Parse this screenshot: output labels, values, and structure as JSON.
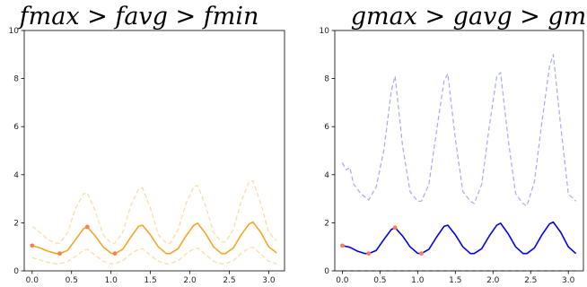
{
  "chart_data": [
    {
      "type": "line",
      "title": "f_max > f_avg > f_min",
      "title_display": "fmax > favg > fmin",
      "xlabel": "",
      "ylabel": "",
      "xlim": [
        -0.1,
        3.2
      ],
      "ylim": [
        0,
        10
      ],
      "xticks": [
        "0.0",
        "0.5",
        "1.0",
        "1.5",
        "2.0",
        "2.5",
        "3.0"
      ],
      "yticks": [
        "0",
        "2",
        "4",
        "6",
        "8",
        "10"
      ],
      "grid": false,
      "colors": {
        "avg": "#f5a623",
        "band": "#fbd9a0",
        "marker": "#ff7f50"
      },
      "series": [
        {
          "name": "f_avg",
          "style": "solid",
          "x": [
            0.0,
            0.1,
            0.2,
            0.3,
            0.35,
            0.45,
            0.55,
            0.65,
            0.7,
            0.8,
            0.9,
            1.0,
            1.05,
            1.15,
            1.25,
            1.35,
            1.4,
            1.5,
            1.6,
            1.7,
            1.75,
            1.85,
            1.95,
            2.05,
            2.1,
            2.2,
            2.3,
            2.4,
            2.45,
            2.55,
            2.65,
            2.75,
            2.8,
            2.9,
            3.0,
            3.1
          ],
          "y": [
            1.05,
            0.95,
            0.82,
            0.72,
            0.72,
            0.85,
            1.3,
            1.75,
            1.83,
            1.45,
            1.0,
            0.73,
            0.72,
            0.9,
            1.4,
            1.85,
            1.9,
            1.5,
            1.0,
            0.72,
            0.72,
            0.92,
            1.45,
            1.9,
            1.98,
            1.55,
            1.0,
            0.72,
            0.72,
            0.95,
            1.5,
            1.95,
            2.03,
            1.6,
            1.0,
            0.75
          ]
        },
        {
          "name": "f_max",
          "style": "dashed",
          "x": [
            0.0,
            0.1,
            0.2,
            0.3,
            0.35,
            0.45,
            0.55,
            0.65,
            0.7,
            0.8,
            0.9,
            1.0,
            1.05,
            1.15,
            1.25,
            1.35,
            1.4,
            1.5,
            1.6,
            1.7,
            1.75,
            1.85,
            1.95,
            2.05,
            2.1,
            2.2,
            2.3,
            2.4,
            2.45,
            2.55,
            2.65,
            2.75,
            2.8,
            2.9,
            3.0,
            3.1
          ],
          "y": [
            1.85,
            1.6,
            1.3,
            1.15,
            1.15,
            1.6,
            2.6,
            3.2,
            3.25,
            2.5,
            1.5,
            1.15,
            1.15,
            1.6,
            2.7,
            3.4,
            3.45,
            2.6,
            1.5,
            1.15,
            1.15,
            1.7,
            2.8,
            3.5,
            3.55,
            2.7,
            1.6,
            1.2,
            1.2,
            1.7,
            2.9,
            3.7,
            3.75,
            2.8,
            1.6,
            1.25
          ]
        },
        {
          "name": "f_min",
          "style": "dashed",
          "x": [
            0.0,
            0.1,
            0.2,
            0.3,
            0.35,
            0.45,
            0.55,
            0.65,
            0.7,
            0.8,
            0.9,
            1.0,
            1.05,
            1.15,
            1.25,
            1.35,
            1.4,
            1.5,
            1.6,
            1.7,
            1.75,
            1.85,
            1.95,
            2.05,
            2.1,
            2.2,
            2.3,
            2.4,
            2.45,
            2.55,
            2.65,
            2.75,
            2.8,
            2.9,
            3.0,
            3.1
          ],
          "y": [
            0.55,
            0.45,
            0.35,
            0.3,
            0.3,
            0.38,
            0.6,
            0.85,
            0.9,
            0.65,
            0.4,
            0.3,
            0.3,
            0.42,
            0.7,
            0.9,
            0.92,
            0.65,
            0.4,
            0.3,
            0.3,
            0.42,
            0.7,
            0.92,
            0.95,
            0.68,
            0.4,
            0.3,
            0.3,
            0.42,
            0.72,
            0.95,
            0.98,
            0.7,
            0.4,
            0.3
          ]
        }
      ],
      "markers": {
        "x": [
          0.0,
          0.35,
          0.7,
          1.05
        ],
        "y": [
          1.05,
          0.72,
          1.83,
          0.72
        ]
      }
    },
    {
      "type": "line",
      "title": "g_max > g_avg > g_min",
      "title_display": "gmax > gavg > gmin",
      "xlabel": "",
      "ylabel": "",
      "xlim": [
        -0.1,
        3.2
      ],
      "ylim": [
        0,
        10
      ],
      "xticks": [
        "0.0",
        "0.5",
        "1.0",
        "1.5",
        "2.0",
        "2.5",
        "3.0"
      ],
      "yticks": [
        "0",
        "2",
        "4",
        "6",
        "8",
        "10"
      ],
      "grid": false,
      "colors": {
        "avg": "#0000ee",
        "band": "#a8a8f5",
        "marker": "#ff7f50"
      },
      "series": [
        {
          "name": "g_avg",
          "style": "solid",
          "x": [
            0.0,
            0.1,
            0.2,
            0.3,
            0.35,
            0.45,
            0.55,
            0.65,
            0.7,
            0.8,
            0.9,
            1.0,
            1.05,
            1.15,
            1.25,
            1.35,
            1.4,
            1.5,
            1.6,
            1.7,
            1.75,
            1.85,
            1.95,
            2.05,
            2.1,
            2.2,
            2.3,
            2.4,
            2.45,
            2.55,
            2.65,
            2.75,
            2.8,
            2.9,
            3.0,
            3.1
          ],
          "y": [
            1.05,
            0.98,
            0.82,
            0.72,
            0.72,
            0.85,
            1.3,
            1.72,
            1.8,
            1.45,
            1.0,
            0.73,
            0.72,
            0.9,
            1.4,
            1.85,
            1.9,
            1.5,
            1.0,
            0.72,
            0.72,
            0.92,
            1.45,
            1.9,
            1.98,
            1.55,
            1.0,
            0.72,
            0.72,
            0.95,
            1.5,
            1.95,
            2.03,
            1.6,
            1.0,
            0.72
          ]
        },
        {
          "name": "g_max",
          "style": "dashed",
          "x": [
            0.0,
            0.05,
            0.1,
            0.15,
            0.25,
            0.35,
            0.45,
            0.55,
            0.65,
            0.7,
            0.8,
            0.9,
            1.0,
            1.05,
            1.15,
            1.25,
            1.35,
            1.4,
            1.5,
            1.6,
            1.7,
            1.75,
            1.85,
            1.95,
            2.05,
            2.1,
            2.2,
            2.3,
            2.4,
            2.45,
            2.55,
            2.65,
            2.75,
            2.8,
            2.9,
            3.0,
            3.1
          ],
          "y": [
            4.5,
            4.2,
            4.3,
            3.6,
            3.2,
            2.95,
            3.5,
            5.0,
            7.5,
            8.1,
            5.2,
            3.3,
            2.9,
            2.9,
            3.6,
            5.8,
            7.9,
            8.2,
            5.5,
            3.3,
            2.9,
            2.8,
            3.6,
            6.0,
            8.1,
            8.25,
            5.5,
            3.2,
            2.8,
            2.7,
            3.7,
            6.2,
            8.5,
            9.0,
            6.0,
            3.2,
            2.9
          ]
        },
        {
          "name": "g_min",
          "style": "dashed",
          "x": [
            0.0,
            3.1
          ],
          "y": [
            0.0,
            0.0
          ]
        }
      ],
      "markers": {
        "x": [
          0.0,
          0.35,
          0.7,
          1.05
        ],
        "y": [
          1.05,
          0.72,
          1.8,
          0.72
        ]
      }
    }
  ]
}
